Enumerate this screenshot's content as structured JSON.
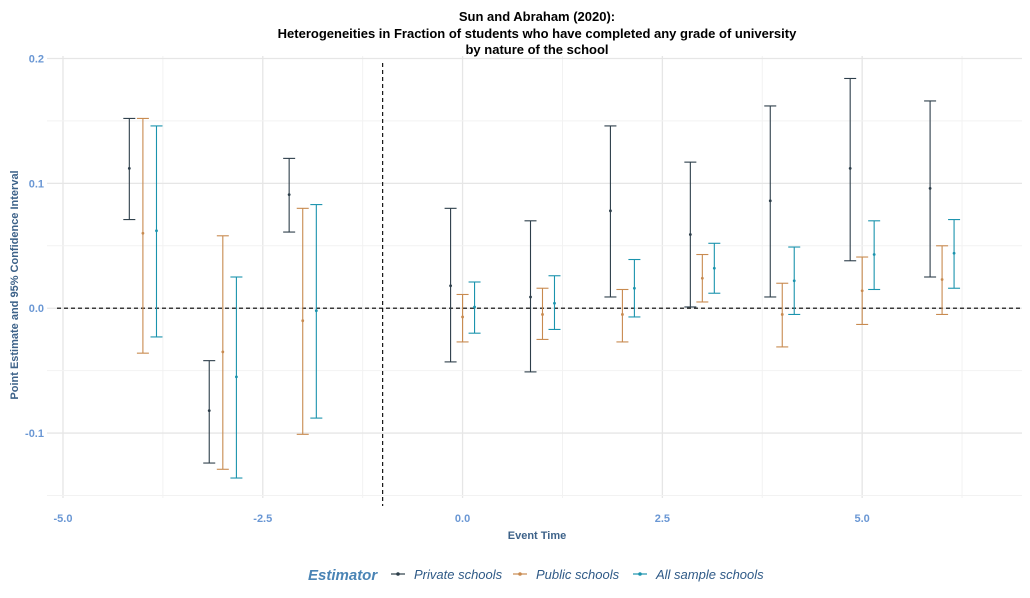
{
  "colors": {
    "tick_text": "#6a97d4",
    "axis_title": "#3d6289",
    "legend_title": "#4a84b5",
    "legend_text": "#2f5a87",
    "grid_major": "#e6e6e6",
    "grid_minor": "#f2f2f2"
  },
  "chart_data": {
    "type": "errorbar",
    "title": "Sun and Abraham (2020):",
    "subtitle_lines": [
      "Heterogeneities in Fraction of students who have completed any grade of university",
      "by nature of the school"
    ],
    "xlabel": "Event Time",
    "ylabel": "Point Estimate and 95% Confidence Interval",
    "xlim": [
      -5.2,
      7.0
    ],
    "ylim": [
      -0.152,
      0.202
    ],
    "x_ticks": [
      -5.0,
      -2.5,
      0.0,
      2.5,
      5.0
    ],
    "x_tick_labels": [
      "-5.0",
      "-2.5",
      "0.0",
      "2.5",
      "5.0"
    ],
    "y_ticks": [
      -0.1,
      0.0,
      0.1,
      0.2
    ],
    "y_tick_labels": [
      "-0.1",
      "0.0",
      "0.1",
      "0.2"
    ],
    "reference_lines": {
      "vertical_x": -1,
      "horizontal_y": 0
    },
    "grid": true,
    "legend_position": "bottom",
    "legend_title": "Estimator",
    "series": [
      {
        "name": "Private schools",
        "color": "#2d3e4a",
        "points": [
          {
            "x": -4.17,
            "est": 0.112,
            "lo": 0.071,
            "hi": 0.152
          },
          {
            "x": -3.17,
            "est": -0.082,
            "lo": -0.124,
            "hi": -0.042
          },
          {
            "x": -2.17,
            "est": 0.091,
            "lo": 0.061,
            "hi": 0.12
          },
          {
            "x": -0.15,
            "est": 0.018,
            "lo": -0.043,
            "hi": 0.08
          },
          {
            "x": 0.85,
            "est": 0.009,
            "lo": -0.051,
            "hi": 0.07
          },
          {
            "x": 1.85,
            "est": 0.078,
            "lo": 0.009,
            "hi": 0.146
          },
          {
            "x": 2.85,
            "est": 0.059,
            "lo": 0.001,
            "hi": 0.117
          },
          {
            "x": 3.85,
            "est": 0.086,
            "lo": 0.009,
            "hi": 0.162
          },
          {
            "x": 4.85,
            "est": 0.112,
            "lo": 0.038,
            "hi": 0.184
          },
          {
            "x": 5.85,
            "est": 0.096,
            "lo": 0.025,
            "hi": 0.166
          }
        ]
      },
      {
        "name": "Public schools",
        "color": "#c88a4f",
        "points": [
          {
            "x": -4.0,
            "est": 0.06,
            "lo": -0.036,
            "hi": 0.152
          },
          {
            "x": -3.0,
            "est": -0.035,
            "lo": -0.129,
            "hi": 0.058
          },
          {
            "x": -2.0,
            "est": -0.01,
            "lo": -0.101,
            "hi": 0.08
          },
          {
            "x": 0.0,
            "est": -0.007,
            "lo": -0.027,
            "hi": 0.011
          },
          {
            "x": 1.0,
            "est": -0.005,
            "lo": -0.025,
            "hi": 0.016
          },
          {
            "x": 2.0,
            "est": -0.005,
            "lo": -0.027,
            "hi": 0.015
          },
          {
            "x": 3.0,
            "est": 0.024,
            "lo": 0.005,
            "hi": 0.043
          },
          {
            "x": 4.0,
            "est": -0.005,
            "lo": -0.031,
            "hi": 0.02
          },
          {
            "x": 5.0,
            "est": 0.014,
            "lo": -0.013,
            "hi": 0.041
          },
          {
            "x": 6.0,
            "est": 0.023,
            "lo": -0.005,
            "hi": 0.05
          }
        ]
      },
      {
        "name": "All sample schools",
        "color": "#1a93ad",
        "points": [
          {
            "x": -3.83,
            "est": 0.062,
            "lo": -0.023,
            "hi": 0.146
          },
          {
            "x": -2.83,
            "est": -0.055,
            "lo": -0.136,
            "hi": 0.025
          },
          {
            "x": -1.83,
            "est": -0.002,
            "lo": -0.088,
            "hi": 0.083
          },
          {
            "x": 0.15,
            "est": 0.001,
            "lo": -0.02,
            "hi": 0.021
          },
          {
            "x": 1.15,
            "est": 0.004,
            "lo": -0.017,
            "hi": 0.026
          },
          {
            "x": 2.15,
            "est": 0.016,
            "lo": -0.007,
            "hi": 0.039
          },
          {
            "x": 3.15,
            "est": 0.032,
            "lo": 0.012,
            "hi": 0.052
          },
          {
            "x": 4.15,
            "est": 0.022,
            "lo": -0.005,
            "hi": 0.049
          },
          {
            "x": 5.15,
            "est": 0.043,
            "lo": 0.015,
            "hi": 0.07
          },
          {
            "x": 6.15,
            "est": 0.044,
            "lo": 0.016,
            "hi": 0.071
          }
        ]
      }
    ]
  }
}
